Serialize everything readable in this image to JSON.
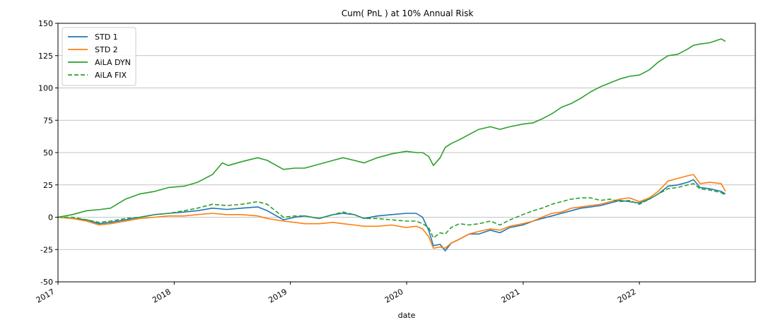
{
  "chart_data": {
    "type": "line",
    "title": "Cum( PnL ) at 10% Annual Risk",
    "xlabel": "date",
    "ylabel": "",
    "xlim": [
      "2017-01-01",
      "2022-12-31"
    ],
    "ylim": [
      -50,
      150
    ],
    "x_ticks": [
      "2017",
      "2018",
      "2019",
      "2020",
      "2021",
      "2022"
    ],
    "y_ticks": [
      -50,
      -25,
      0,
      25,
      50,
      75,
      100,
      125,
      150
    ],
    "grid": "horizontal",
    "legend_position": "top-left",
    "series": [
      {
        "name": "STD 1",
        "color": "#1f77b4",
        "dash": "solid",
        "points": [
          [
            "2017-01-01",
            0
          ],
          [
            "2017-02-15",
            -1
          ],
          [
            "2017-04-01",
            -2
          ],
          [
            "2017-05-10",
            -5
          ],
          [
            "2017-06-15",
            -4
          ],
          [
            "2017-08-01",
            -2
          ],
          [
            "2017-09-15",
            0
          ],
          [
            "2017-11-01",
            2
          ],
          [
            "2017-12-15",
            3
          ],
          [
            "2018-02-01",
            4
          ],
          [
            "2018-03-15",
            5
          ],
          [
            "2018-05-01",
            7
          ],
          [
            "2018-06-15",
            6
          ],
          [
            "2018-08-01",
            7
          ],
          [
            "2018-09-20",
            8
          ],
          [
            "2018-10-20",
            5
          ],
          [
            "2018-12-10",
            -2
          ],
          [
            "2019-01-15",
            0
          ],
          [
            "2019-02-15",
            1
          ],
          [
            "2019-04-01",
            -1
          ],
          [
            "2019-05-15",
            2
          ],
          [
            "2019-06-15",
            3
          ],
          [
            "2019-07-20",
            2
          ],
          [
            "2019-08-20",
            -1
          ],
          [
            "2019-10-01",
            1
          ],
          [
            "2019-11-15",
            2
          ],
          [
            "2019-12-31",
            3
          ],
          [
            "2020-01-31",
            3
          ],
          [
            "2020-02-20",
            0
          ],
          [
            "2020-03-10",
            -10
          ],
          [
            "2020-03-25",
            -22
          ],
          [
            "2020-04-15",
            -21
          ],
          [
            "2020-05-01",
            -26
          ],
          [
            "2020-05-20",
            -20
          ],
          [
            "2020-06-15",
            -17
          ],
          [
            "2020-07-15",
            -13
          ],
          [
            "2020-08-15",
            -13
          ],
          [
            "2020-09-20",
            -10
          ],
          [
            "2020-10-20",
            -12
          ],
          [
            "2020-11-20",
            -8
          ],
          [
            "2020-12-31",
            -6
          ],
          [
            "2021-02-01",
            -3
          ],
          [
            "2021-03-01",
            -1
          ],
          [
            "2021-04-01",
            1
          ],
          [
            "2021-05-01",
            3
          ],
          [
            "2021-06-01",
            5
          ],
          [
            "2021-07-01",
            7
          ],
          [
            "2021-08-01",
            8
          ],
          [
            "2021-09-01",
            9
          ],
          [
            "2021-10-01",
            11
          ],
          [
            "2021-11-01",
            13
          ],
          [
            "2021-12-01",
            12
          ],
          [
            "2022-01-01",
            11
          ],
          [
            "2022-02-01",
            14
          ],
          [
            "2022-03-01",
            18
          ],
          [
            "2022-04-01",
            24
          ],
          [
            "2022-05-01",
            25
          ],
          [
            "2022-06-01",
            27
          ],
          [
            "2022-06-20",
            29
          ],
          [
            "2022-07-10",
            23
          ],
          [
            "2022-08-10",
            22
          ],
          [
            "2022-09-15",
            20
          ],
          [
            "2022-09-28",
            18
          ]
        ]
      },
      {
        "name": "STD 2",
        "color": "#ff7f0e",
        "dash": "solid",
        "points": [
          [
            "2017-01-01",
            0
          ],
          [
            "2017-02-15",
            -1
          ],
          [
            "2017-04-01",
            -3
          ],
          [
            "2017-05-10",
            -6
          ],
          [
            "2017-06-15",
            -5
          ],
          [
            "2017-08-01",
            -3
          ],
          [
            "2017-09-15",
            -1
          ],
          [
            "2017-11-01",
            0
          ],
          [
            "2017-12-15",
            1
          ],
          [
            "2018-02-01",
            1
          ],
          [
            "2018-03-15",
            2
          ],
          [
            "2018-05-01",
            3
          ],
          [
            "2018-06-15",
            2
          ],
          [
            "2018-08-01",
            2
          ],
          [
            "2018-09-20",
            1
          ],
          [
            "2018-10-20",
            -1
          ],
          [
            "2018-12-10",
            -3
          ],
          [
            "2019-01-15",
            -4
          ],
          [
            "2019-02-15",
            -5
          ],
          [
            "2019-04-01",
            -5
          ],
          [
            "2019-05-15",
            -4
          ],
          [
            "2019-06-15",
            -5
          ],
          [
            "2019-07-20",
            -6
          ],
          [
            "2019-08-20",
            -7
          ],
          [
            "2019-10-01",
            -7
          ],
          [
            "2019-11-15",
            -6
          ],
          [
            "2019-12-31",
            -8
          ],
          [
            "2020-01-31",
            -7
          ],
          [
            "2020-02-20",
            -9
          ],
          [
            "2020-03-10",
            -15
          ],
          [
            "2020-03-25",
            -24
          ],
          [
            "2020-04-15",
            -23
          ],
          [
            "2020-05-01",
            -24
          ],
          [
            "2020-05-20",
            -20
          ],
          [
            "2020-06-15",
            -17
          ],
          [
            "2020-07-15",
            -13
          ],
          [
            "2020-08-15",
            -11
          ],
          [
            "2020-09-20",
            -9
          ],
          [
            "2020-10-20",
            -10
          ],
          [
            "2020-11-20",
            -7
          ],
          [
            "2020-12-31",
            -5
          ],
          [
            "2021-02-01",
            -3
          ],
          [
            "2021-03-01",
            0
          ],
          [
            "2021-04-01",
            3
          ],
          [
            "2021-05-01",
            4
          ],
          [
            "2021-06-01",
            7
          ],
          [
            "2021-07-01",
            8
          ],
          [
            "2021-08-01",
            9
          ],
          [
            "2021-09-01",
            10
          ],
          [
            "2021-10-01",
            12
          ],
          [
            "2021-11-01",
            14
          ],
          [
            "2021-12-01",
            15
          ],
          [
            "2022-01-01",
            12
          ],
          [
            "2022-02-01",
            15
          ],
          [
            "2022-03-01",
            20
          ],
          [
            "2022-04-01",
            28
          ],
          [
            "2022-05-01",
            30
          ],
          [
            "2022-06-01",
            32
          ],
          [
            "2022-06-20",
            33
          ],
          [
            "2022-07-10",
            26
          ],
          [
            "2022-08-10",
            27
          ],
          [
            "2022-09-15",
            26
          ],
          [
            "2022-09-28",
            20
          ]
        ]
      },
      {
        "name": "AiLA DYN",
        "color": "#2ca02c",
        "dash": "solid",
        "points": [
          [
            "2017-01-01",
            0
          ],
          [
            "2017-02-15",
            2
          ],
          [
            "2017-04-01",
            5
          ],
          [
            "2017-05-15",
            6
          ],
          [
            "2017-06-15",
            7
          ],
          [
            "2017-08-01",
            14
          ],
          [
            "2017-09-15",
            18
          ],
          [
            "2017-11-01",
            20
          ],
          [
            "2017-12-15",
            23
          ],
          [
            "2018-02-01",
            24
          ],
          [
            "2018-03-15",
            27
          ],
          [
            "2018-05-01",
            33
          ],
          [
            "2018-06-01",
            42
          ],
          [
            "2018-06-20",
            40
          ],
          [
            "2018-08-01",
            43
          ],
          [
            "2018-09-20",
            46
          ],
          [
            "2018-10-20",
            44
          ],
          [
            "2018-12-10",
            37
          ],
          [
            "2019-01-15",
            38
          ],
          [
            "2019-02-15",
            38
          ],
          [
            "2019-04-01",
            41
          ],
          [
            "2019-05-15",
            44
          ],
          [
            "2019-06-15",
            46
          ],
          [
            "2019-07-20",
            44
          ],
          [
            "2019-08-20",
            42
          ],
          [
            "2019-10-01",
            46
          ],
          [
            "2019-11-15",
            49
          ],
          [
            "2019-12-31",
            51
          ],
          [
            "2020-01-31",
            50
          ],
          [
            "2020-02-20",
            50
          ],
          [
            "2020-03-10",
            47
          ],
          [
            "2020-03-25",
            40
          ],
          [
            "2020-04-15",
            46
          ],
          [
            "2020-05-01",
            54
          ],
          [
            "2020-05-20",
            57
          ],
          [
            "2020-06-15",
            60
          ],
          [
            "2020-07-15",
            64
          ],
          [
            "2020-08-15",
            68
          ],
          [
            "2020-09-20",
            70
          ],
          [
            "2020-10-20",
            68
          ],
          [
            "2020-11-20",
            70
          ],
          [
            "2020-12-31",
            72
          ],
          [
            "2021-02-01",
            73
          ],
          [
            "2021-03-01",
            76
          ],
          [
            "2021-04-01",
            80
          ],
          [
            "2021-05-01",
            85
          ],
          [
            "2021-06-01",
            88
          ],
          [
            "2021-07-01",
            92
          ],
          [
            "2021-08-01",
            97
          ],
          [
            "2021-09-01",
            101
          ],
          [
            "2021-10-01",
            104
          ],
          [
            "2021-11-01",
            107
          ],
          [
            "2021-12-01",
            109
          ],
          [
            "2022-01-01",
            110
          ],
          [
            "2022-02-01",
            114
          ],
          [
            "2022-03-01",
            120
          ],
          [
            "2022-04-01",
            125
          ],
          [
            "2022-05-01",
            126
          ],
          [
            "2022-06-01",
            130
          ],
          [
            "2022-06-20",
            133
          ],
          [
            "2022-07-10",
            134
          ],
          [
            "2022-08-10",
            135
          ],
          [
            "2022-09-15",
            138
          ],
          [
            "2022-09-28",
            136
          ]
        ]
      },
      {
        "name": "AiLA FIX",
        "color": "#2ca02c",
        "dash": "dashed",
        "points": [
          [
            "2017-01-01",
            0
          ],
          [
            "2017-02-15",
            0
          ],
          [
            "2017-04-01",
            -2
          ],
          [
            "2017-05-10",
            -4
          ],
          [
            "2017-06-15",
            -3
          ],
          [
            "2017-08-01",
            -1
          ],
          [
            "2017-09-15",
            0
          ],
          [
            "2017-11-01",
            2
          ],
          [
            "2017-12-15",
            3
          ],
          [
            "2018-02-01",
            5
          ],
          [
            "2018-03-15",
            7
          ],
          [
            "2018-05-01",
            10
          ],
          [
            "2018-06-15",
            9
          ],
          [
            "2018-08-01",
            10
          ],
          [
            "2018-09-20",
            12
          ],
          [
            "2018-10-20",
            10
          ],
          [
            "2018-12-10",
            0
          ],
          [
            "2019-01-15",
            1
          ],
          [
            "2019-02-15",
            1
          ],
          [
            "2019-04-01",
            -1
          ],
          [
            "2019-05-15",
            2
          ],
          [
            "2019-06-15",
            4
          ],
          [
            "2019-07-20",
            2
          ],
          [
            "2019-08-20",
            -1
          ],
          [
            "2019-10-01",
            -1
          ],
          [
            "2019-11-15",
            -2
          ],
          [
            "2019-12-31",
            -3
          ],
          [
            "2020-01-31",
            -3
          ],
          [
            "2020-02-20",
            -5
          ],
          [
            "2020-03-10",
            -8
          ],
          [
            "2020-03-25",
            -16
          ],
          [
            "2020-04-15",
            -12
          ],
          [
            "2020-05-01",
            -13
          ],
          [
            "2020-05-20",
            -8
          ],
          [
            "2020-06-15",
            -5
          ],
          [
            "2020-07-15",
            -6
          ],
          [
            "2020-08-15",
            -5
          ],
          [
            "2020-09-20",
            -3
          ],
          [
            "2020-10-20",
            -6
          ],
          [
            "2020-11-20",
            -2
          ],
          [
            "2020-12-31",
            2
          ],
          [
            "2021-02-01",
            5
          ],
          [
            "2021-03-01",
            7
          ],
          [
            "2021-04-01",
            10
          ],
          [
            "2021-05-01",
            12
          ],
          [
            "2021-06-01",
            14
          ],
          [
            "2021-07-01",
            15
          ],
          [
            "2021-08-01",
            15
          ],
          [
            "2021-09-01",
            13
          ],
          [
            "2021-10-01",
            14
          ],
          [
            "2021-11-01",
            12
          ],
          [
            "2021-12-01",
            13
          ],
          [
            "2022-01-01",
            10
          ],
          [
            "2022-02-01",
            14
          ],
          [
            "2022-03-01",
            18
          ],
          [
            "2022-04-01",
            22
          ],
          [
            "2022-05-01",
            23
          ],
          [
            "2022-06-01",
            25
          ],
          [
            "2022-06-20",
            26
          ],
          [
            "2022-07-10",
            22
          ],
          [
            "2022-08-10",
            21
          ],
          [
            "2022-09-15",
            19
          ],
          [
            "2022-09-28",
            17
          ]
        ]
      }
    ]
  }
}
